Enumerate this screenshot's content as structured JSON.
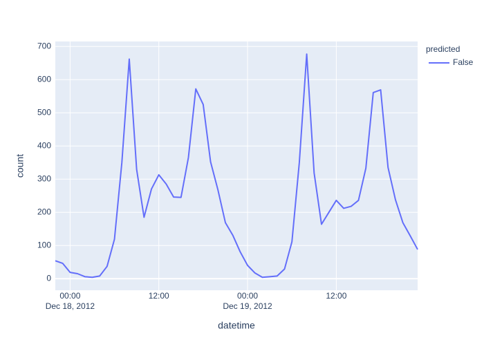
{
  "chart_data": {
    "type": "line",
    "x_title": "datetime",
    "y_title": "count",
    "legend_title": "predicted",
    "x": [
      "2012-12-17 22:00",
      "2012-12-17 23:00",
      "2012-12-18 00:00",
      "2012-12-18 01:00",
      "2012-12-18 02:00",
      "2012-12-18 03:00",
      "2012-12-18 04:00",
      "2012-12-18 05:00",
      "2012-12-18 06:00",
      "2012-12-18 07:00",
      "2012-12-18 08:00",
      "2012-12-18 09:00",
      "2012-12-18 10:00",
      "2012-12-18 11:00",
      "2012-12-18 12:00",
      "2012-12-18 13:00",
      "2012-12-18 14:00",
      "2012-12-18 15:00",
      "2012-12-18 16:00",
      "2012-12-18 17:00",
      "2012-12-18 18:00",
      "2012-12-18 19:00",
      "2012-12-18 20:00",
      "2012-12-18 21:00",
      "2012-12-18 22:00",
      "2012-12-18 23:00",
      "2012-12-19 00:00",
      "2012-12-19 01:00",
      "2012-12-19 02:00",
      "2012-12-19 03:00",
      "2012-12-19 04:00",
      "2012-12-19 05:00",
      "2012-12-19 06:00",
      "2012-12-19 07:00",
      "2012-12-19 08:00",
      "2012-12-19 09:00",
      "2012-12-19 10:00",
      "2012-12-19 11:00",
      "2012-12-19 12:00",
      "2012-12-19 13:00",
      "2012-12-19 14:00",
      "2012-12-19 15:00",
      "2012-12-19 16:00",
      "2012-12-19 17:00",
      "2012-12-19 18:00",
      "2012-12-19 19:00",
      "2012-12-19 20:00",
      "2012-12-19 21:00",
      "2012-12-19 22:00",
      "2012-12-19 23:00"
    ],
    "series": [
      {
        "name": "False",
        "color": "#636efa",
        "values": [
          54,
          46,
          19,
          15,
          6,
          4,
          8,
          37,
          119,
          350,
          662,
          329,
          185,
          270,
          313,
          285,
          246,
          245,
          365,
          572,
          525,
          352,
          267,
          169,
          131,
          81,
          40,
          17,
          4,
          6,
          8,
          29,
          111,
          350,
          677,
          319,
          164,
          200,
          236,
          212,
          218,
          236,
          333,
          561,
          569,
          335,
          238,
          169,
          129,
          88
        ]
      }
    ],
    "xlim": [
      "2012-12-17 22:00",
      "2012-12-19 23:00"
    ],
    "xticks": [
      {
        "value": "2012-12-18 00:00",
        "label": "00:00",
        "date": "Dec 18, 2012"
      },
      {
        "value": "2012-12-18 12:00",
        "label": "12:00"
      },
      {
        "value": "2012-12-19 00:00",
        "label": "00:00",
        "date": "Dec 19, 2012"
      },
      {
        "value": "2012-12-19 12:00",
        "label": "12:00"
      }
    ],
    "ylim": [
      -35,
      715
    ],
    "yticks": [
      0,
      100,
      200,
      300,
      400,
      500,
      600,
      700
    ],
    "grid": true,
    "background": "#e5ecf6",
    "legend_position": "right"
  }
}
